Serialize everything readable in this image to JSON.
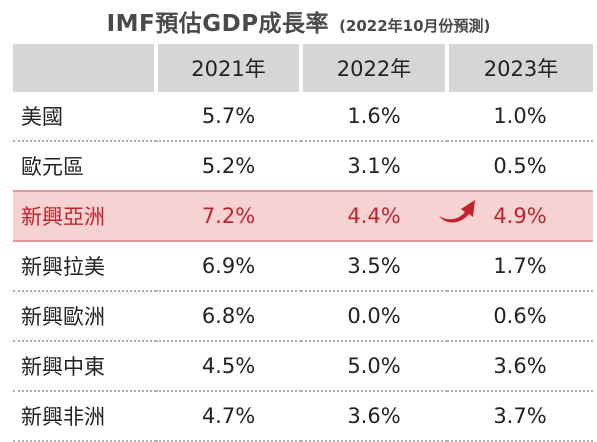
{
  "header": {
    "title": "IMF預估GDP成長率",
    "subtitle": "(2022年10月份預測)"
  },
  "table": {
    "columns": [
      "",
      "2021年",
      "2022年",
      "2023年"
    ],
    "rows": [
      {
        "name": "美國",
        "values": [
          "5.7%",
          "1.6%",
          "1.0%"
        ]
      },
      {
        "name": "歐元區",
        "values": [
          "5.2%",
          "3.1%",
          "0.5%"
        ]
      },
      {
        "name": "新興亞洲",
        "values": [
          "7.2%",
          "4.4%",
          "4.9%"
        ],
        "highlight": true
      },
      {
        "name": "新興拉美",
        "values": [
          "6.9%",
          "3.5%",
          "1.7%"
        ]
      },
      {
        "name": "新興歐洲",
        "values": [
          "6.8%",
          "0.0%",
          "0.6%"
        ]
      },
      {
        "name": "新興中東",
        "values": [
          "4.5%",
          "5.0%",
          "3.6%"
        ]
      },
      {
        "name": "新興非洲",
        "values": [
          "4.7%",
          "3.6%",
          "3.7%"
        ]
      }
    ]
  },
  "chart_data": {
    "type": "table",
    "title": "IMF預估GDP成長率",
    "subtitle": "(2022年10月份預測)",
    "columns": [
      "2021年",
      "2022年",
      "2023年"
    ],
    "rows": [
      "美國",
      "歐元區",
      "新興亞洲",
      "新興拉美",
      "新興歐洲",
      "新興中東",
      "新興非洲"
    ],
    "values": [
      [
        5.7,
        1.6,
        1.0
      ],
      [
        5.2,
        3.1,
        0.5
      ],
      [
        7.2,
        4.4,
        4.9
      ],
      [
        6.9,
        3.5,
        1.7
      ],
      [
        6.8,
        0.0,
        0.6
      ],
      [
        4.5,
        5.0,
        3.6
      ],
      [
        4.7,
        3.6,
        3.7
      ]
    ],
    "unit": "%",
    "highlighted_row": "新興亞洲",
    "annotation_icon": "curved-up-arrow-icon"
  },
  "colors": {
    "header_bg": "#d6d6d6",
    "highlight_bg": "#f6d2d2",
    "highlight_text": "#c0242a",
    "title_text": "#4a4a4a"
  }
}
